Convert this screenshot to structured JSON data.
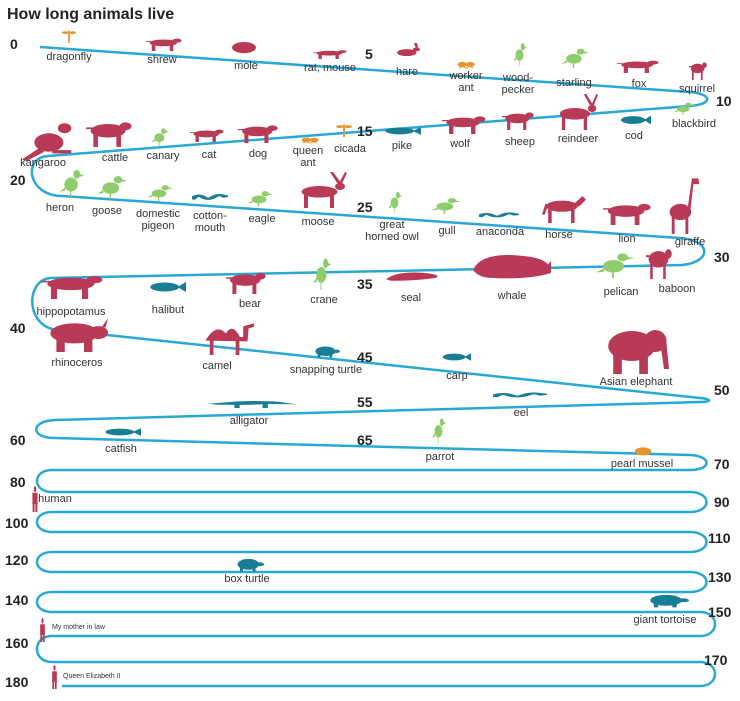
{
  "title": "How long animals live",
  "colors": {
    "track": "#29a8d6",
    "mammal": "#b83a57",
    "bird": "#8fcc6b",
    "fish_reptile": "#1a7d96",
    "insect": "#e8932e"
  },
  "numbers": [
    "0",
    "5",
    "10",
    "15",
    "20",
    "25",
    "30",
    "35",
    "40",
    "45",
    "50",
    "55",
    "60",
    "65",
    "70",
    "80",
    "90",
    "100",
    "110",
    "120",
    "130",
    "140",
    "150",
    "160",
    "170",
    "180"
  ],
  "animals": [
    {
      "label": "dragonfly",
      "icon": "dragonfly-icon",
      "group": "insect"
    },
    {
      "label": "shrew",
      "icon": "shrew-icon",
      "group": "mammal"
    },
    {
      "label": "mole",
      "icon": "mole-icon",
      "group": "mammal"
    },
    {
      "label": "rat, mouse",
      "icon": "rat-icon",
      "group": "mammal"
    },
    {
      "label": "hare",
      "icon": "hare-icon",
      "group": "mammal"
    },
    {
      "label": "worker\nant",
      "icon": "ant-icon",
      "group": "insect"
    },
    {
      "label": "wood-\npecker",
      "icon": "woodpecker-icon",
      "group": "bird"
    },
    {
      "label": "starling",
      "icon": "starling-icon",
      "group": "bird"
    },
    {
      "label": "fox",
      "icon": "fox-icon",
      "group": "mammal"
    },
    {
      "label": "squirrel",
      "icon": "squirrel-icon",
      "group": "mammal"
    },
    {
      "label": "blackbird",
      "icon": "blackbird-icon",
      "group": "bird"
    },
    {
      "label": "cod",
      "icon": "cod-icon",
      "group": "fish_reptile"
    },
    {
      "label": "reindeer",
      "icon": "reindeer-icon",
      "group": "mammal"
    },
    {
      "label": "sheep",
      "icon": "sheep-icon",
      "group": "mammal"
    },
    {
      "label": "wolf",
      "icon": "wolf-icon",
      "group": "mammal"
    },
    {
      "label": "pike",
      "icon": "pike-icon",
      "group": "fish_reptile"
    },
    {
      "label": "cicada",
      "icon": "cicada-icon",
      "group": "insect"
    },
    {
      "label": "queen\nant",
      "icon": "queen-ant-icon",
      "group": "insect"
    },
    {
      "label": "dog",
      "icon": "dog-icon",
      "group": "mammal"
    },
    {
      "label": "cat",
      "icon": "cat-icon",
      "group": "mammal"
    },
    {
      "label": "canary",
      "icon": "canary-icon",
      "group": "bird"
    },
    {
      "label": "cattle",
      "icon": "cattle-icon",
      "group": "mammal"
    },
    {
      "label": "kangaroo",
      "icon": "kangaroo-icon",
      "group": "mammal"
    },
    {
      "label": "heron",
      "icon": "heron-icon",
      "group": "bird"
    },
    {
      "label": "goose",
      "icon": "goose-icon",
      "group": "bird"
    },
    {
      "label": "domestic\npigeon",
      "icon": "pigeon-icon",
      "group": "bird"
    },
    {
      "label": "cotton-\nmouth",
      "icon": "cottonmouth-icon",
      "group": "fish_reptile"
    },
    {
      "label": "eagle",
      "icon": "eagle-icon",
      "group": "bird"
    },
    {
      "label": "moose",
      "icon": "moose-icon",
      "group": "mammal"
    },
    {
      "label": "great\nhorned owl",
      "icon": "owl-icon",
      "group": "bird"
    },
    {
      "label": "gull",
      "icon": "gull-icon",
      "group": "bird"
    },
    {
      "label": "anaconda",
      "icon": "anaconda-icon",
      "group": "fish_reptile"
    },
    {
      "label": "horse",
      "icon": "horse-icon",
      "group": "mammal"
    },
    {
      "label": "lion",
      "icon": "lion-icon",
      "group": "mammal"
    },
    {
      "label": "giraffe",
      "icon": "giraffe-icon",
      "group": "mammal"
    },
    {
      "label": "baboon",
      "icon": "baboon-icon",
      "group": "mammal"
    },
    {
      "label": "pelican",
      "icon": "pelican-icon",
      "group": "bird"
    },
    {
      "label": "whale",
      "icon": "whale-icon",
      "group": "mammal"
    },
    {
      "label": "seal",
      "icon": "seal-icon",
      "group": "mammal"
    },
    {
      "label": "crane",
      "icon": "crane-icon",
      "group": "bird"
    },
    {
      "label": "bear",
      "icon": "bear-icon",
      "group": "mammal"
    },
    {
      "label": "halibut",
      "icon": "halibut-icon",
      "group": "fish_reptile"
    },
    {
      "label": "hippopotamus",
      "icon": "hippo-icon",
      "group": "mammal"
    },
    {
      "label": "rhinoceros",
      "icon": "rhino-icon",
      "group": "mammal"
    },
    {
      "label": "camel",
      "icon": "camel-icon",
      "group": "mammal"
    },
    {
      "label": "snapping turtle",
      "icon": "snapping-turtle-icon",
      "group": "fish_reptile"
    },
    {
      "label": "carp",
      "icon": "carp-icon",
      "group": "fish_reptile"
    },
    {
      "label": "Asian elephant",
      "icon": "elephant-icon",
      "group": "mammal"
    },
    {
      "label": "eel",
      "icon": "eel-icon",
      "group": "fish_reptile"
    },
    {
      "label": "alligator",
      "icon": "alligator-icon",
      "group": "fish_reptile"
    },
    {
      "label": "catfish",
      "icon": "catfish-icon",
      "group": "fish_reptile"
    },
    {
      "label": "parrot",
      "icon": "parrot-icon",
      "group": "bird"
    },
    {
      "label": "pearl mussel",
      "icon": "mussel-icon",
      "group": "insect"
    },
    {
      "label": "human",
      "icon": "human-icon",
      "group": "mammal"
    },
    {
      "label": "box turtle",
      "icon": "box-turtle-icon",
      "group": "fish_reptile"
    },
    {
      "label": "giant tortoise",
      "icon": "tortoise-icon",
      "group": "fish_reptile"
    },
    {
      "label": "My mother in law",
      "icon": "person-icon",
      "group": "mammal"
    },
    {
      "label": "Queen Elizabeth II",
      "icon": "person-icon",
      "group": "mammal"
    }
  ]
}
